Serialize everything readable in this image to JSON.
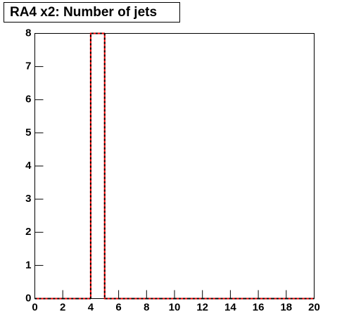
{
  "chart_data": {
    "type": "histogram",
    "title": "RA4 x2: Number of jets",
    "bins": [
      0,
      1,
      2,
      3,
      4,
      5,
      6,
      7,
      8,
      9,
      10,
      11,
      12,
      13,
      14,
      15,
      16,
      17,
      18,
      19,
      20
    ],
    "values": [
      0,
      0,
      0,
      0,
      8,
      0,
      0,
      0,
      0,
      0,
      0,
      0,
      0,
      0,
      0,
      0,
      0,
      0,
      0,
      0
    ],
    "color": "#ff0000",
    "overlay_color": "#000000",
    "xlim": [
      0,
      20
    ],
    "xticks": [
      0,
      2,
      4,
      6,
      8,
      10,
      12,
      14,
      16,
      18,
      20
    ],
    "ylim": [
      0,
      8
    ],
    "yticks": [
      0,
      1,
      2,
      3,
      4,
      5,
      6,
      7,
      8
    ]
  }
}
